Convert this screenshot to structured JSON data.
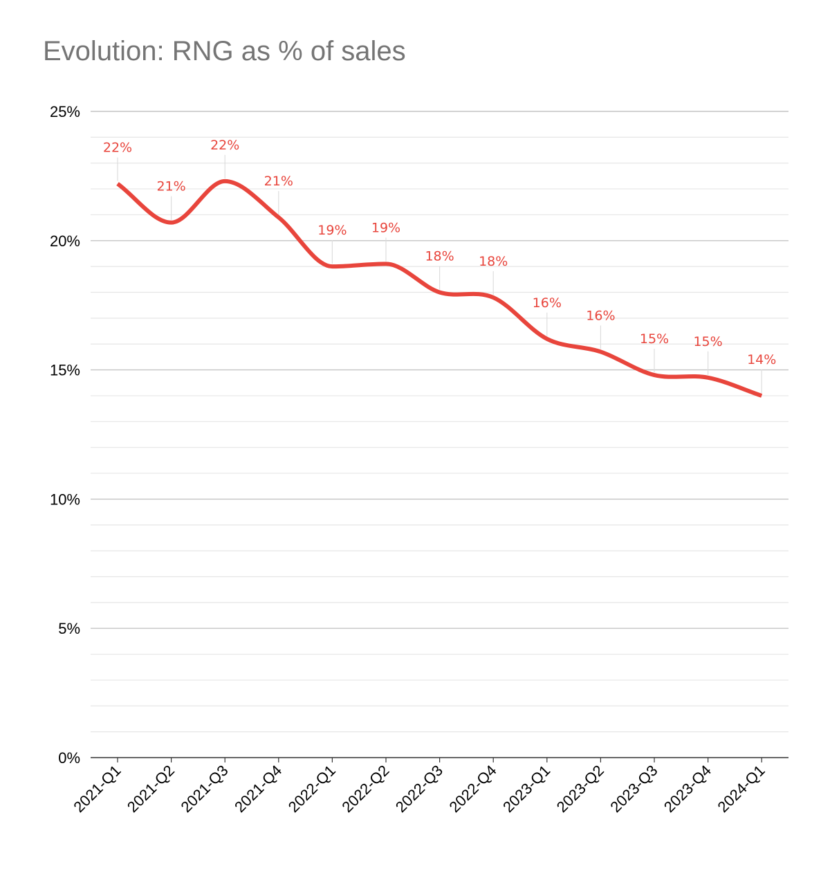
{
  "chart_data": {
    "type": "line",
    "title": "Evolution: RNG as % of sales",
    "xlabel": "",
    "ylabel": "",
    "categories": [
      "2021-Q1",
      "2021-Q2",
      "2021-Q3",
      "2021-Q4",
      "2022-Q1",
      "2022-Q2",
      "2022-Q3",
      "2022-Q4",
      "2023-Q1",
      "2023-Q2",
      "2023-Q3",
      "2023-Q4",
      "2024-Q1"
    ],
    "series": [
      {
        "values": [
          22.2,
          20.7,
          22.3,
          20.9,
          19.0,
          19.1,
          18.0,
          17.8,
          16.2,
          15.7,
          14.8,
          14.7,
          14.0
        ],
        "labels": [
          "22%",
          "21%",
          "22%",
          "21%",
          "19%",
          "19%",
          "18%",
          "18%",
          "16%",
          "16%",
          "15%",
          "15%",
          "14%"
        ],
        "color": "#e8453c"
      }
    ],
    "ylim": [
      0,
      25
    ],
    "yticks": [
      0,
      5,
      10,
      15,
      20,
      25
    ],
    "ytick_labels": [
      "0%",
      "5%",
      "10%",
      "15%",
      "20%",
      "25%"
    ],
    "minor_grid_step": 1,
    "smooth": true,
    "legend": "none",
    "grid": true
  }
}
